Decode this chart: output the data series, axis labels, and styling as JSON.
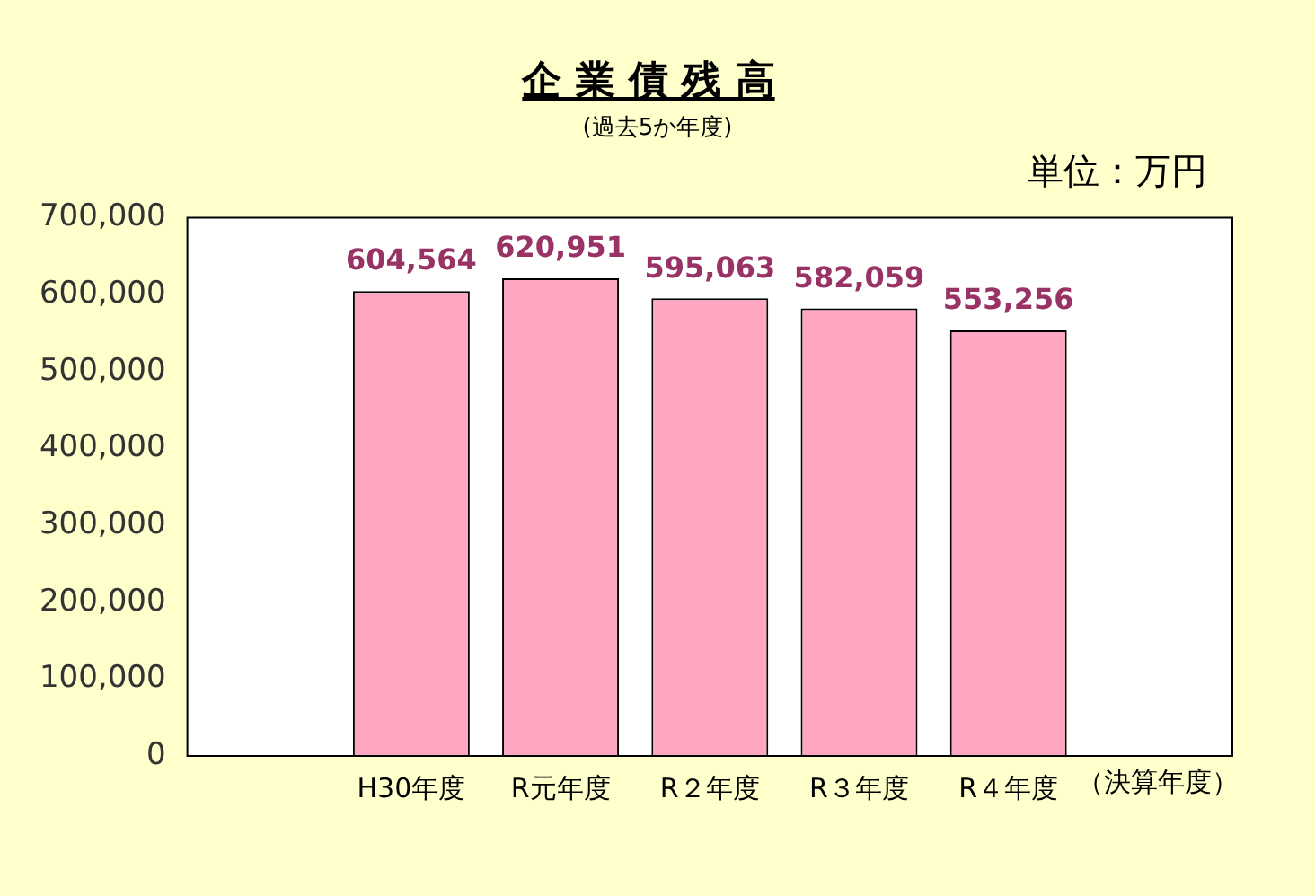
{
  "chart_data": {
    "type": "bar",
    "title": "企 業 債 残 高",
    "subtitle": "(過去5か年度)",
    "annotations": [
      "単位：万円"
    ],
    "xlabel": "（決算年度）",
    "categories": [
      null,
      "H30年度",
      "R元年度",
      "R２年度",
      "R３年度",
      "R４年度",
      null
    ],
    "values": [
      null,
      604564,
      620951,
      595063,
      582059,
      553256,
      null
    ],
    "value_labels": [
      null,
      "604,564",
      "620,951",
      "595,063",
      "582,059",
      "553,256",
      null
    ],
    "color": "#ffa6c0",
    "grid": false,
    "legend": false,
    "ylim": [
      0,
      700000
    ],
    "yticks": [
      0,
      {
        "value": 100000,
        "label": "100,000"
      },
      {
        "value": 200000,
        "label": "200,000"
      },
      {
        "value": 300000,
        "label": "300,000"
      },
      {
        "value": 400000,
        "label": "400,000"
      },
      {
        "value": 500000,
        "label": "500,000"
      },
      {
        "value": 600000,
        "label": "600,000"
      },
      {
        "value": 700000,
        "label": "700,000"
      }
    ]
  }
}
